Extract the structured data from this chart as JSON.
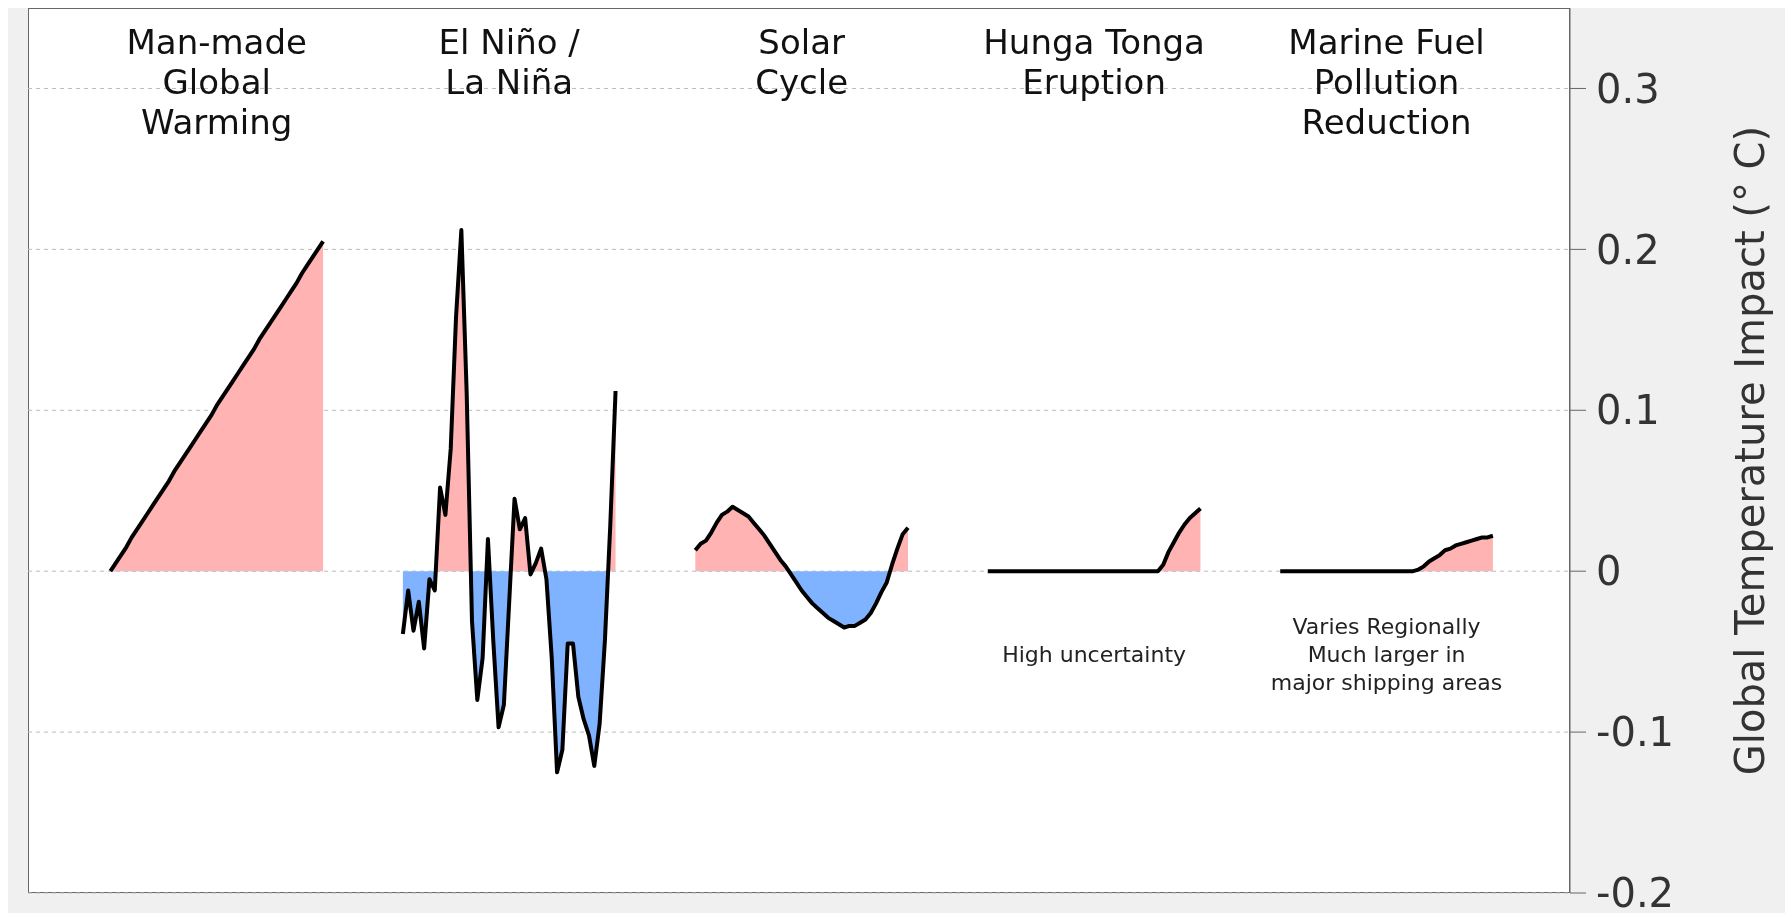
{
  "chart_data": {
    "type": "area",
    "ylabel": "Global Temperature Impact (° C)",
    "categories": [
      null,
      null,
      null,
      null,
      null,
      null,
      null,
      null,
      null,
      null,
      null,
      null,
      null,
      null,
      null,
      null,
      null,
      null,
      null,
      null,
      null,
      null,
      null,
      null,
      null,
      null,
      null,
      null,
      null,
      null,
      null,
      null,
      null,
      null,
      null,
      null,
      null,
      null,
      null,
      null,
      null,
      null,
      null,
      null,
      null,
      null,
      null,
      null,
      null,
      null,
      null,
      null,
      null,
      null,
      null,
      null,
      null,
      null,
      null,
      null,
      null,
      null,
      null,
      null,
      null,
      null,
      null,
      null,
      null,
      null,
      null,
      null,
      null,
      null,
      null,
      null,
      null,
      null,
      null,
      null,
      null,
      null,
      null,
      null,
      null,
      null,
      null,
      null,
      null,
      null,
      null,
      null,
      null,
      null,
      null,
      null,
      null,
      null,
      null,
      null,
      null,
      null,
      null,
      null,
      null,
      null,
      null,
      null,
      null,
      null,
      null,
      null,
      null,
      null,
      null,
      null,
      null,
      null,
      null,
      null,
      null,
      null,
      null,
      null,
      null,
      null,
      null,
      null,
      null,
      null,
      null,
      null,
      null,
      null,
      null,
      null,
      null,
      null,
      null,
      null,
      null,
      null,
      null,
      null,
      null,
      null,
      null,
      null,
      null,
      null,
      null,
      null,
      null,
      null,
      null,
      null,
      null,
      null,
      null,
      null,
      null,
      null,
      null,
      null,
      null,
      null,
      null,
      null,
      null,
      null,
      null,
      null,
      null,
      null,
      null,
      null,
      null,
      null,
      null,
      null,
      null,
      null,
      null,
      null,
      null,
      null,
      null,
      null,
      null,
      null,
      null,
      null,
      null,
      null,
      null,
      null,
      null,
      null,
      null,
      null,
      null,
      null,
      null,
      null,
      null,
      null,
      null,
      null,
      null,
      null,
      null,
      null,
      null,
      null,
      null,
      null,
      null,
      null,
      null,
      null,
      null,
      null,
      null,
      null,
      null,
      null,
      null,
      null,
      null,
      null,
      null,
      null,
      null,
      null,
      null,
      null,
      null,
      null,
      null,
      null,
      null,
      null,
      null,
      null,
      null,
      null,
      null,
      null,
      null,
      null,
      null,
      null,
      null,
      null,
      null,
      null,
      null,
      null,
      null,
      null,
      null,
      null,
      null,
      null,
      null,
      null,
      null,
      null,
      null,
      null,
      null,
      null,
      null,
      null,
      null,
      null,
      null,
      null,
      null,
      null,
      null,
      null,
      null,
      null,
      null,
      null,
      null,
      null,
      null,
      null
    ],
    "series": [
      {
        "color": "#000000",
        "values": [
          null,
          null,
          null,
          null,
          null,
          null,
          null,
          null,
          null,
          null,
          null,
          null,
          null,
          null,
          null,
          0,
          0.005,
          0.01,
          0.015,
          0.021,
          0.026,
          0.031,
          0.036,
          0.041,
          0.046,
          0.051,
          0.056,
          0.062,
          0.067,
          0.072,
          0.077,
          0.082,
          0.087,
          0.092,
          0.097,
          0.103,
          0.108,
          0.113,
          0.118,
          0.123,
          0.128,
          0.133,
          0.138,
          0.144,
          0.149,
          0.154,
          0.159,
          0.164,
          0.169,
          0.174,
          0.179,
          0.185,
          0.19,
          0.195,
          0.2,
          0.205,
          null,
          null,
          null,
          null,
          null,
          null,
          null,
          null,
          null,
          null,
          null,
          null,
          null,
          null,
          null,
          null,
          null,
          null,
          null,
          null,
          null,
          null,
          null,
          null,
          null,
          null,
          null,
          null,
          null,
          null,
          null,
          null,
          null,
          null,
          null,
          null,
          null,
          null,
          null,
          null,
          null,
          null,
          null,
          null,
          null,
          null,
          null,
          null,
          null,
          null,
          null,
          null,
          null,
          null,
          null,
          null,
          null,
          null,
          null,
          null,
          null,
          null,
          null,
          null,
          null,
          null,
          null,
          null,
          null,
          null,
          null,
          null,
          null,
          null,
          null,
          null,
          null,
          null,
          null,
          null,
          null,
          null,
          null,
          null,
          null,
          null,
          null,
          null,
          null,
          null,
          null,
          null,
          null,
          null,
          null,
          null,
          null,
          null,
          null,
          null,
          null,
          null,
          null,
          null,
          null,
          null,
          null,
          null,
          null,
          null,
          null,
          null,
          null,
          null,
          null,
          null,
          null,
          null,
          null,
          null,
          null,
          null,
          null,
          null,
          null,
          null,
          null,
          null,
          null,
          null,
          null,
          null,
          null,
          null,
          null,
          null,
          null,
          null,
          null,
          null,
          null,
          null,
          null,
          null,
          null,
          null,
          null,
          null,
          null,
          null,
          null,
          null,
          null,
          null,
          null,
          null,
          null,
          null,
          null,
          null,
          null,
          null,
          null,
          null,
          null,
          null,
          null,
          null,
          null,
          null,
          null,
          null,
          null,
          null,
          null,
          null,
          null,
          null,
          null,
          null,
          null,
          null,
          null,
          null,
          null,
          null,
          null,
          null,
          null,
          null,
          null,
          null,
          null,
          null,
          null,
          null,
          null,
          null,
          null,
          null,
          null,
          null,
          null,
          null,
          null,
          null,
          null,
          null,
          null,
          null,
          null,
          null,
          null,
          null,
          null,
          null,
          null,
          null,
          null,
          null,
          null,
          null,
          null,
          null,
          null,
          null,
          null,
          null,
          null,
          null,
          null,
          null,
          null,
          null
        ]
      },
      {
        "color": "#000000",
        "values": [
          null,
          null,
          null,
          null,
          null,
          null,
          null,
          null,
          null,
          null,
          null,
          null,
          null,
          null,
          null,
          null,
          null,
          null,
          null,
          null,
          null,
          null,
          null,
          null,
          null,
          null,
          null,
          null,
          null,
          null,
          null,
          null,
          null,
          null,
          null,
          null,
          null,
          null,
          null,
          null,
          null,
          null,
          null,
          null,
          null,
          null,
          null,
          null,
          null,
          null,
          null,
          null,
          null,
          null,
          null,
          null,
          null,
          null,
          null,
          null,
          null,
          null,
          null,
          null,
          null,
          null,
          null,
          null,
          null,
          null,
          -0.039,
          -0.012,
          -0.037,
          -0.019,
          -0.048,
          -0.005,
          -0.012,
          0.052,
          0.035,
          0.076,
          0.158,
          0.212,
          0.111,
          -0.031,
          -0.08,
          -0.054,
          0.02,
          -0.043,
          -0.097,
          -0.083,
          -0.019,
          0.045,
          0.026,
          0.033,
          -0.002,
          0.005,
          0.014,
          -0.005,
          -0.054,
          -0.125,
          -0.111,
          -0.045,
          -0.045,
          -0.078,
          -0.092,
          -0.102,
          -0.121,
          -0.095,
          -0.043,
          0.028,
          0.112,
          null,
          null,
          null,
          null,
          null,
          null,
          null,
          null,
          null,
          null,
          null,
          null,
          null,
          null,
          null,
          null,
          null,
          null,
          null,
          null,
          null,
          null,
          null,
          null,
          null,
          null,
          null,
          null,
          null,
          null,
          null,
          null,
          null,
          null,
          null,
          null,
          null,
          null,
          null,
          null,
          null,
          null,
          null,
          null,
          null,
          null,
          null,
          null,
          null,
          null,
          null,
          null,
          null,
          null,
          null,
          null,
          null,
          null,
          null,
          null,
          null,
          null,
          null,
          null,
          null,
          null,
          null,
          null,
          null,
          null,
          null,
          null,
          null,
          null,
          null,
          null,
          null,
          null,
          null,
          null,
          null,
          null,
          null,
          null,
          null,
          null,
          null,
          null,
          null,
          null,
          null,
          null,
          null,
          null,
          null,
          null,
          null,
          null,
          null,
          null,
          null,
          null,
          null,
          null,
          null,
          null,
          null,
          null,
          null,
          null,
          null,
          null,
          null,
          null,
          null,
          null,
          null,
          null,
          null,
          null,
          null,
          null,
          null,
          null,
          null,
          null,
          null,
          null,
          null,
          null,
          null,
          null,
          null,
          null,
          null,
          null,
          null,
          null,
          null,
          null,
          null,
          null,
          null,
          null,
          null,
          null,
          null,
          null,
          null,
          null,
          null,
          null,
          null,
          null,
          null,
          null,
          null,
          null,
          null,
          null,
          null,
          null,
          null,
          null,
          null,
          null,
          null,
          null,
          null,
          null,
          null,
          null,
          null,
          null,
          null,
          null,
          null,
          null,
          null
        ]
      },
      {
        "color": "#000000",
        "values": [
          null,
          null,
          null,
          null,
          null,
          null,
          null,
          null,
          null,
          null,
          null,
          null,
          null,
          null,
          null,
          null,
          null,
          null,
          null,
          null,
          null,
          null,
          null,
          null,
          null,
          null,
          null,
          null,
          null,
          null,
          null,
          null,
          null,
          null,
          null,
          null,
          null,
          null,
          null,
          null,
          null,
          null,
          null,
          null,
          null,
          null,
          null,
          null,
          null,
          null,
          null,
          null,
          null,
          null,
          null,
          null,
          null,
          null,
          null,
          null,
          null,
          null,
          null,
          null,
          null,
          null,
          null,
          null,
          null,
          null,
          null,
          null,
          null,
          null,
          null,
          null,
          null,
          null,
          null,
          null,
          null,
          null,
          null,
          null,
          null,
          null,
          null,
          null,
          null,
          null,
          null,
          null,
          null,
          null,
          null,
          null,
          null,
          null,
          null,
          null,
          null,
          null,
          null,
          null,
          null,
          null,
          null,
          null,
          null,
          null,
          null,
          null,
          null,
          null,
          null,
          null,
          null,
          null,
          null,
          null,
          null,
          null,
          null,
          null,
          null,
          0.013,
          0.017,
          0.019,
          0.024,
          0.03,
          0.035,
          0.037,
          0.04,
          0.038,
          0.036,
          0.034,
          0.03,
          0.026,
          0.022,
          0.017,
          0.012,
          0.007,
          0.003,
          -0.002,
          -0.007,
          -0.012,
          -0.016,
          -0.02,
          -0.023,
          -0.026,
          -0.029,
          -0.031,
          -0.033,
          -0.035,
          -0.034,
          -0.034,
          -0.032,
          -0.03,
          -0.026,
          -0.02,
          -0.013,
          -0.007,
          0.004,
          0.014,
          0.023,
          0.027,
          null,
          null,
          null,
          null,
          null,
          null,
          null,
          null,
          null,
          null,
          null,
          null,
          null,
          null,
          null,
          null,
          null,
          null,
          null,
          null,
          null,
          null,
          null,
          null,
          null,
          null,
          null,
          null,
          null,
          null,
          null,
          null,
          null,
          null,
          null,
          null,
          null,
          null,
          null,
          null,
          null,
          null,
          null,
          null,
          null,
          null,
          null,
          null,
          null,
          null,
          null,
          null,
          null,
          null,
          null,
          null,
          null,
          null,
          null,
          null,
          null,
          null,
          null,
          null,
          null,
          null,
          null,
          null,
          null,
          null,
          null,
          null,
          null,
          null,
          null,
          null,
          null,
          null,
          null,
          null,
          null,
          null,
          null,
          null,
          null,
          null,
          null,
          null,
          null,
          null,
          null,
          null,
          null,
          null,
          null,
          null,
          null,
          null,
          null,
          null,
          null,
          null,
          null,
          null,
          null,
          null,
          null,
          null,
          null,
          null,
          null,
          null,
          null,
          null,
          null,
          null,
          null,
          null,
          null,
          null,
          null,
          null,
          null,
          null
        ]
      },
      {
        "color": "#000000",
        "values": [
          null,
          null,
          null,
          null,
          null,
          null,
          null,
          null,
          null,
          null,
          null,
          null,
          null,
          null,
          null,
          null,
          null,
          null,
          null,
          null,
          null,
          null,
          null,
          null,
          null,
          null,
          null,
          null,
          null,
          null,
          null,
          null,
          null,
          null,
          null,
          null,
          null,
          null,
          null,
          null,
          null,
          null,
          null,
          null,
          null,
          null,
          null,
          null,
          null,
          null,
          null,
          null,
          null,
          null,
          null,
          null,
          null,
          null,
          null,
          null,
          null,
          null,
          null,
          null,
          null,
          null,
          null,
          null,
          null,
          null,
          null,
          null,
          null,
          null,
          null,
          null,
          null,
          null,
          null,
          null,
          null,
          null,
          null,
          null,
          null,
          null,
          null,
          null,
          null,
          null,
          null,
          null,
          null,
          null,
          null,
          null,
          null,
          null,
          null,
          null,
          null,
          null,
          null,
          null,
          null,
          null,
          null,
          null,
          null,
          null,
          null,
          null,
          null,
          null,
          null,
          null,
          null,
          null,
          null,
          null,
          null,
          null,
          null,
          null,
          null,
          null,
          null,
          null,
          null,
          null,
          null,
          null,
          null,
          null,
          null,
          null,
          null,
          null,
          null,
          null,
          null,
          null,
          null,
          null,
          null,
          null,
          null,
          null,
          null,
          null,
          null,
          null,
          null,
          null,
          null,
          null,
          null,
          null,
          null,
          null,
          null,
          null,
          null,
          null,
          null,
          null,
          null,
          null,
          null,
          null,
          null,
          null,
          null,
          null,
          null,
          null,
          null,
          null,
          null,
          null,
          0,
          0,
          0,
          0,
          0,
          0,
          0,
          0,
          0,
          0,
          0,
          0,
          0,
          0,
          0,
          0,
          0,
          0,
          0,
          0,
          0,
          0,
          0,
          0,
          0,
          0,
          0,
          0,
          0,
          0,
          0,
          0,
          0,
          0.004,
          0.012,
          0.018,
          0.024,
          0.029,
          0.033,
          0.036,
          0.039,
          null,
          null,
          null,
          null,
          null,
          null,
          null,
          null,
          null,
          null,
          null,
          null,
          null,
          null,
          null,
          null,
          null,
          null,
          null,
          null,
          null,
          null,
          null,
          null,
          null,
          null,
          null,
          null,
          null,
          null,
          null,
          null,
          null,
          null,
          null,
          null,
          null,
          null,
          null,
          null,
          null,
          null,
          null,
          null,
          null,
          null,
          null,
          null,
          null,
          null,
          null,
          null,
          null,
          null,
          null,
          null,
          null,
          null,
          null,
          null,
          null,
          null,
          null,
          null,
          null,
          null,
          null,
          null,
          null
        ]
      },
      {
        "color": "#000000",
        "values": [
          null,
          null,
          null,
          null,
          null,
          null,
          null,
          null,
          null,
          null,
          null,
          null,
          null,
          null,
          null,
          null,
          null,
          null,
          null,
          null,
          null,
          null,
          null,
          null,
          null,
          null,
          null,
          null,
          null,
          null,
          null,
          null,
          null,
          null,
          null,
          null,
          null,
          null,
          null,
          null,
          null,
          null,
          null,
          null,
          null,
          null,
          null,
          null,
          null,
          null,
          null,
          null,
          null,
          null,
          null,
          null,
          null,
          null,
          null,
          null,
          null,
          null,
          null,
          null,
          null,
          null,
          null,
          null,
          null,
          null,
          null,
          null,
          null,
          null,
          null,
          null,
          null,
          null,
          null,
          null,
          null,
          null,
          null,
          null,
          null,
          null,
          null,
          null,
          null,
          null,
          null,
          null,
          null,
          null,
          null,
          null,
          null,
          null,
          null,
          null,
          null,
          null,
          null,
          null,
          null,
          null,
          null,
          null,
          null,
          null,
          null,
          null,
          null,
          null,
          null,
          null,
          null,
          null,
          null,
          null,
          null,
          null,
          null,
          null,
          null,
          null,
          null,
          null,
          null,
          null,
          null,
          null,
          null,
          null,
          null,
          null,
          null,
          null,
          null,
          null,
          null,
          null,
          null,
          null,
          null,
          null,
          null,
          null,
          null,
          null,
          null,
          null,
          null,
          null,
          null,
          null,
          null,
          null,
          null,
          null,
          null,
          null,
          null,
          null,
          null,
          null,
          null,
          null,
          null,
          null,
          null,
          null,
          null,
          null,
          null,
          null,
          null,
          null,
          null,
          null,
          null,
          null,
          null,
          null,
          null,
          null,
          null,
          null,
          null,
          null,
          null,
          null,
          null,
          null,
          null,
          null,
          null,
          null,
          null,
          null,
          null,
          null,
          null,
          null,
          null,
          null,
          null,
          null,
          null,
          null,
          null,
          null,
          null,
          null,
          null,
          null,
          null,
          null,
          null,
          null,
          null,
          null,
          null,
          null,
          null,
          null,
          null,
          null,
          null,
          null,
          null,
          null,
          null,
          null,
          null,
          0,
          0,
          0,
          0,
          0,
          0,
          0,
          0,
          0,
          0,
          0,
          0,
          0,
          0,
          0,
          0,
          0,
          0,
          0,
          0,
          0,
          0,
          0,
          0,
          0,
          0,
          0.001,
          0.003,
          0.006,
          0.008,
          0.01,
          0.013,
          0.014,
          0.016,
          0.017,
          0.018,
          0.019,
          0.02,
          0.021,
          0.021,
          0.022,
          null,
          null,
          null,
          null,
          null,
          null,
          null,
          null,
          null,
          null,
          null,
          null,
          null,
          null
        ]
      }
    ],
    "colors": [
      "#ffb3b3",
      "#80b3ff"
    ],
    "annotations": [
      "Man-made\nGlobal\nWarming",
      "El Niño /\nLa Niña",
      "Solar\nCycle",
      "Hunga Tonga\nEruption",
      "Marine Fuel\nPollution\nReduction",
      "High uncertainty",
      "Varies Regionally\nMuch larger in\nmajor shipping areas"
    ],
    "ylim": [
      -0.2,
      0.35
    ],
    "yticks": [
      -0.2,
      -0.1,
      0,
      0.1,
      0.2,
      0.3
    ],
    "grid": "y",
    "tick_labels": "y",
    "legend": false,
    "marker": "none",
    "line_style": "solid"
  }
}
